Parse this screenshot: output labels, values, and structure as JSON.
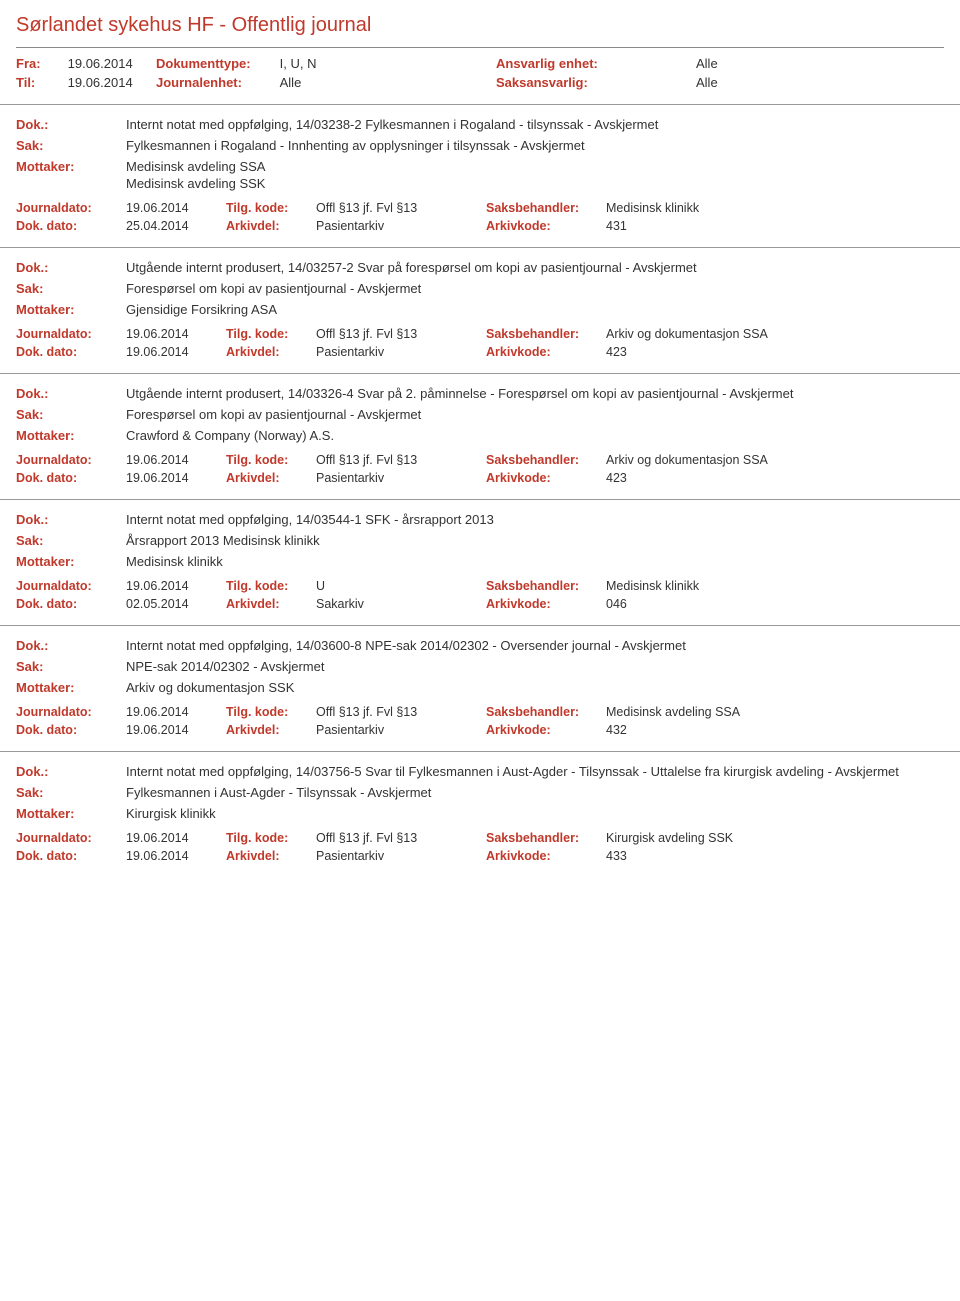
{
  "header": {
    "title": "Sørlandet sykehus HF - Offentlig journal",
    "fra_label": "Fra:",
    "fra_value": "19.06.2014",
    "til_label": "Til:",
    "til_value": "19.06.2014",
    "dokumenttype_label": "Dokumenttype:",
    "dokumenttype_value": "I, U, N",
    "journalenhet_label": "Journalenhet:",
    "journalenhet_value": "Alle",
    "ansvarlig_label": "Ansvarlig enhet:",
    "ansvarlig_value": "Alle",
    "saksansvarlig_label": "Saksansvarlig:",
    "saksansvarlig_value": "Alle"
  },
  "labels": {
    "dok": "Dok.:",
    "sak": "Sak:",
    "mottaker": "Mottaker:",
    "journaldato": "Journaldato:",
    "dokdato": "Dok. dato:",
    "tilgkode": "Tilg. kode:",
    "arkivdel": "Arkivdel:",
    "saksbehandler": "Saksbehandler:",
    "arkivkode": "Arkivkode:"
  },
  "entries": [
    {
      "dok": "Internt notat med oppfølging, 14/03238-2 Fylkesmannen i Rogaland - tilsynssak - Avskjermet",
      "sak": "Fylkesmannen i Rogaland - Innhenting av opplysninger i tilsynssak - Avskjermet",
      "mottaker": [
        "Medisinsk avdeling SSA",
        "Medisinsk avdeling SSK"
      ],
      "journaldato": "19.06.2014",
      "tilgkode": "Offl §13 jf. Fvl §13",
      "saksbehandler": "Medisinsk klinikk",
      "dokdato": "25.04.2014",
      "arkivdel": "Pasientarkiv",
      "arkivkode": "431"
    },
    {
      "dok": "Utgående internt produsert, 14/03257-2 Svar på forespørsel om kopi av pasientjournal - Avskjermet",
      "sak": "Forespørsel om kopi av pasientjournal - Avskjermet",
      "mottaker": [
        "Gjensidige Forsikring ASA"
      ],
      "journaldato": "19.06.2014",
      "tilgkode": "Offl §13 jf. Fvl §13",
      "saksbehandler": "Arkiv og dokumentasjon SSA",
      "dokdato": "19.06.2014",
      "arkivdel": "Pasientarkiv",
      "arkivkode": "423"
    },
    {
      "dok": "Utgående internt produsert, 14/03326-4 Svar på 2. påminnelse -  Forespørsel om kopi av pasientjournal - Avskjermet",
      "sak": "Forespørsel om kopi av pasientjournal - Avskjermet",
      "mottaker": [
        "Crawford & Company (Norway) A.S."
      ],
      "journaldato": "19.06.2014",
      "tilgkode": "Offl §13 jf. Fvl §13",
      "saksbehandler": "Arkiv og dokumentasjon SSA",
      "dokdato": "19.06.2014",
      "arkivdel": "Pasientarkiv",
      "arkivkode": "423"
    },
    {
      "dok": "Internt notat med oppfølging, 14/03544-1 SFK - årsrapport 2013",
      "sak": "Årsrapport 2013 Medisinsk klinikk",
      "mottaker": [
        "Medisinsk klinikk"
      ],
      "journaldato": "19.06.2014",
      "tilgkode": "U",
      "saksbehandler": "Medisinsk klinikk",
      "dokdato": "02.05.2014",
      "arkivdel": "Sakarkiv",
      "arkivkode": "046"
    },
    {
      "dok": "Internt notat med oppfølging, 14/03600-8 NPE-sak 2014/02302 -  Oversender journal - Avskjermet",
      "sak": "NPE-sak 2014/02302 - Avskjermet",
      "mottaker": [
        "Arkiv og dokumentasjon SSK"
      ],
      "journaldato": "19.06.2014",
      "tilgkode": "Offl §13 jf. Fvl §13",
      "saksbehandler": "Medisinsk avdeling SSA",
      "dokdato": "19.06.2014",
      "arkivdel": "Pasientarkiv",
      "arkivkode": "432"
    },
    {
      "dok": "Internt notat med oppfølging, 14/03756-5 Svar til Fylkesmannen i Aust-Agder - Tilsynssak - Uttalelse fra kirurgisk avdeling - Avskjermet",
      "sak": "Fylkesmannen i Aust-Agder - Tilsynssak - Avskjermet",
      "mottaker": [
        "Kirurgisk klinikk"
      ],
      "journaldato": "19.06.2014",
      "tilgkode": "Offl §13 jf. Fvl §13",
      "saksbehandler": "Kirurgisk avdeling SSK",
      "dokdato": "19.06.2014",
      "arkivdel": "Pasientarkiv",
      "arkivkode": "433"
    }
  ],
  "colors": {
    "accent": "#c0392b",
    "text": "#333333",
    "divider": "#999999",
    "background": "#ffffff"
  }
}
